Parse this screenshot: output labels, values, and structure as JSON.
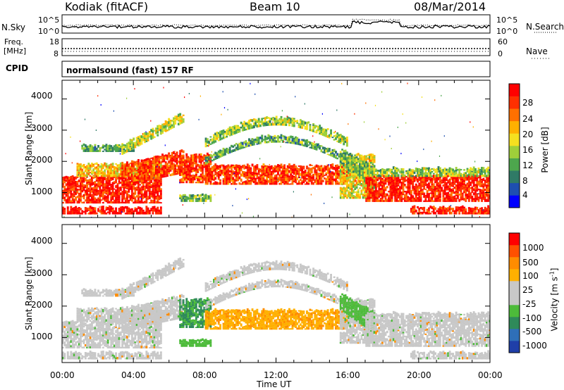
{
  "header": {
    "station": "Kodiak (fitACF)",
    "beam": "Beam 10",
    "date": "08/Mar/2014"
  },
  "top_panels": {
    "nsky_label": "N.Sky",
    "nsearch_label": "N.Search",
    "nsky_ticks": [
      "10^5",
      "10^0"
    ],
    "nsearch_ticks": [
      "10^5",
      "10^0"
    ],
    "freq_label_1": "Freq.",
    "freq_label_2": "[MHz]",
    "freq_ticks": [
      "18",
      "8"
    ],
    "nave_label": "Nave",
    "nave_ticks": [
      "60",
      "0"
    ],
    "cpid_label": "CPID",
    "cpid_text": "normalsound (fast) 157 RF"
  },
  "chart_data": [
    {
      "type": "heatmap",
      "name": "power",
      "ylabel": "Slant Range [km]",
      "xlabel": "",
      "x_range_hours": [
        0,
        24
      ],
      "ylim": [
        200,
        4600
      ],
      "y_ticks": [
        "4000",
        "3000",
        "2000",
        "1000"
      ],
      "colorbar_label": "Power [dB]",
      "colorbar_ticks": [
        "28",
        "24",
        "20",
        "16",
        "12",
        "8",
        "4"
      ],
      "colorbar_colors": [
        "#0000ff",
        "#1e4fb0",
        "#2f7a66",
        "#4da64d",
        "#9fcf3a",
        "#f5e020",
        "#ffb000",
        "#ff7000",
        "#ff3000",
        "#ff0000"
      ]
    },
    {
      "type": "heatmap",
      "name": "velocity",
      "ylabel": "Slant Range [km]",
      "xlabel": "Time UT",
      "x_range_hours": [
        0,
        24
      ],
      "x_ticks": [
        "00:00",
        "04:00",
        "08:00",
        "12:00",
        "16:00",
        "20:00",
        "00:00"
      ],
      "ylim": [
        200,
        4600
      ],
      "y_ticks": [
        "4000",
        "3000",
        "2000",
        "1000"
      ],
      "colorbar_label": "Velocity [m s",
      "colorbar_label_sup": "-1",
      "colorbar_label_end": "]",
      "colorbar_ticks": [
        "1000",
        "500",
        "100",
        "25",
        "-25",
        "-100",
        "-500",
        "-1000"
      ],
      "colorbar_colors": [
        "#1f3fa8",
        "#2f6fb8",
        "#2f8a5a",
        "#4dbb3a",
        "#c8c8c8",
        "#c8c8c8",
        "#ffb000",
        "#ff8c00",
        "#ff5000",
        "#ff0000"
      ]
    }
  ]
}
